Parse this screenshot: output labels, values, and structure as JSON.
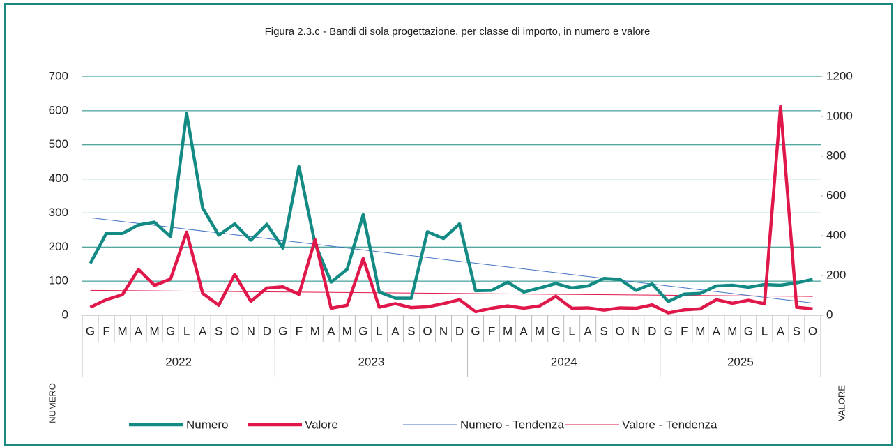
{
  "chart_data": {
    "type": "line",
    "title": "Figura 2.3.c - Bandi di sola progettazione, per classe di importo, in numero e valore",
    "categories": [
      "G",
      "F",
      "M",
      "A",
      "M",
      "G",
      "L",
      "A",
      "S",
      "O",
      "N",
      "D",
      "G",
      "F",
      "M",
      "A",
      "M",
      "G",
      "L",
      "A",
      "S",
      "O",
      "N",
      "D",
      "G",
      "F",
      "M",
      "A",
      "M",
      "G",
      "L",
      "A",
      "S",
      "O",
      "N",
      "D",
      "G",
      "F",
      "M",
      "A",
      "M",
      "G",
      "L",
      "A",
      "S",
      "O"
    ],
    "years": [
      "2022",
      "2023",
      "2024",
      "2025"
    ],
    "ylabel": "NUMERO",
    "y2label": "VALORE",
    "ylim": [
      0,
      700
    ],
    "yticks": [
      0,
      100,
      200,
      300,
      400,
      500,
      600,
      700
    ],
    "y2lim": [
      0,
      1200
    ],
    "y2ticks": [
      0,
      200,
      400,
      600,
      800,
      1000,
      1200
    ],
    "grid": true,
    "legend": "bottom",
    "series": [
      {
        "name": "Numero",
        "color": "#138b84",
        "values": [
          152,
          240,
          240,
          265,
          273,
          230,
          592,
          315,
          235,
          268,
          220,
          267,
          197,
          436,
          210,
          97,
          135,
          295,
          68,
          50,
          50,
          245,
          225,
          268,
          72,
          73,
          97,
          68,
          80,
          93,
          80,
          86,
          108,
          105,
          73,
          92,
          40,
          62,
          64,
          86,
          88,
          82,
          90,
          88,
          95,
          105
        ]
      },
      {
        "name": "Valore",
        "color": "#e0174a",
        "axis": "y2",
        "values": [
          40,
          78,
          103,
          230,
          150,
          182,
          418,
          110,
          50,
          205,
          70,
          137,
          143,
          105,
          380,
          35,
          50,
          285,
          40,
          58,
          38,
          42,
          58,
          78,
          18,
          35,
          47,
          35,
          47,
          95,
          35,
          37,
          26,
          37,
          35,
          52,
          12,
          27,
          32,
          78,
          60,
          75,
          57,
          1050,
          40,
          32
        ]
      }
    ],
    "trendlines": [
      {
        "name": "Numero - Tendenza",
        "color": "#4472c4",
        "of": 0
      },
      {
        "name": "Valore - Tendenza",
        "color": "#e0174a",
        "of": 1
      }
    ]
  }
}
